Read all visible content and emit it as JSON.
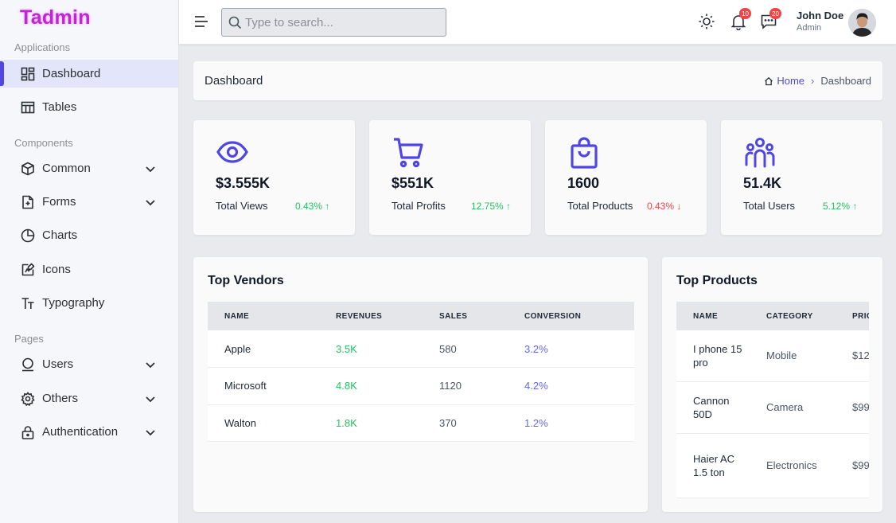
{
  "app": {
    "name": "Tadmin"
  },
  "colors": {
    "accent": "#4f46e5",
    "logo": "#c026d3",
    "up": "#22c55e",
    "down": "#ef4444"
  },
  "sidebar": {
    "sections": [
      {
        "label": "Applications"
      },
      {
        "label": "Components"
      },
      {
        "label": "Pages"
      }
    ],
    "items": [
      {
        "label": "Dashboard",
        "icon": "dashboard-icon",
        "active": true
      },
      {
        "label": "Tables",
        "icon": "table-icon"
      },
      {
        "label": "Common",
        "icon": "cube-icon",
        "expandable": true
      },
      {
        "label": "Forms",
        "icon": "form-icon",
        "expandable": true
      },
      {
        "label": "Charts",
        "icon": "pie-chart-icon"
      },
      {
        "label": "Icons",
        "icon": "icons-icon"
      },
      {
        "label": "Typography",
        "icon": "typography-icon"
      },
      {
        "label": "Users",
        "icon": "user-icon",
        "expandable": true
      },
      {
        "label": "Others",
        "icon": "gear-icon",
        "expandable": true
      },
      {
        "label": "Authentication",
        "icon": "lock-icon",
        "expandable": true
      }
    ]
  },
  "header": {
    "search_placeholder": "Type to search...",
    "notifications_count": "10",
    "messages_count": "20",
    "user": {
      "name": "John Doe",
      "role": "Admin"
    }
  },
  "breadcrumb": {
    "title": "Dashboard",
    "home": "Home",
    "current": "Dashboard"
  },
  "stats": [
    {
      "value": "$3.555K",
      "label": "Total Views",
      "change": "0.43%",
      "direction": "up",
      "icon": "eye-icon"
    },
    {
      "value": "$551K",
      "label": "Total Profits",
      "change": "12.75%",
      "direction": "up",
      "icon": "cart-icon"
    },
    {
      "value": "1600",
      "label": "Total Products",
      "change": "0.43%",
      "direction": "down",
      "icon": "bag-icon"
    },
    {
      "value": "51.4K",
      "label": "Total Users",
      "change": "5.12%",
      "direction": "up",
      "icon": "users-icon"
    }
  ],
  "vendors": {
    "title": "Top Vendors",
    "columns": [
      "NAME",
      "REVENUES",
      "SALES",
      "CONVERSION"
    ],
    "rows": [
      {
        "name": "Apple",
        "revenue": "3.5K",
        "sales": "580",
        "conversion": "3.2%"
      },
      {
        "name": "Microsoft",
        "revenue": "4.8K",
        "sales": "1120",
        "conversion": "4.2%"
      },
      {
        "name": "Walton",
        "revenue": "1.8K",
        "sales": "370",
        "conversion": "1.2%"
      }
    ]
  },
  "products": {
    "title": "Top Products",
    "columns": [
      "NAME",
      "CATEGORY",
      "PRIC"
    ],
    "rows": [
      {
        "name": "I phone 15 pro",
        "category": "Mobile",
        "price": "$12"
      },
      {
        "name": "Cannon 50D",
        "category": "Camera",
        "price": "$99"
      },
      {
        "name": "Haier AC 1.5 ton",
        "category": "Electronics",
        "price": "$99"
      }
    ]
  }
}
